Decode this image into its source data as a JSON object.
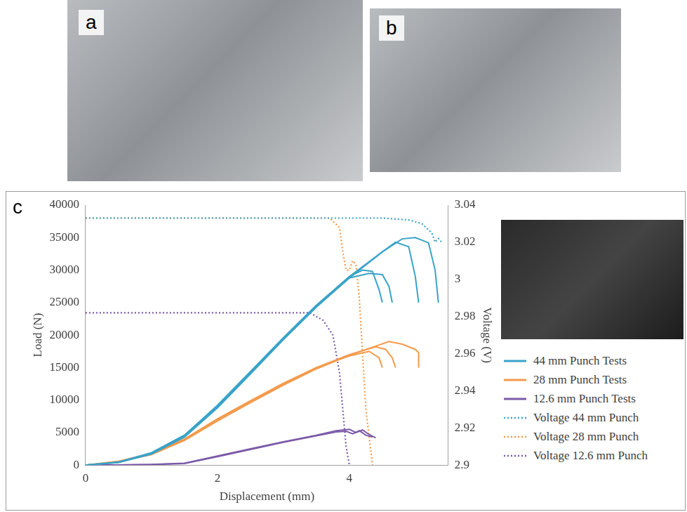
{
  "panel_labels": [
    "a",
    "b",
    "c"
  ],
  "chart_data": {
    "type": "line",
    "x_label": "Displacement (mm)",
    "y_label": "Load (N)",
    "y2_label": "Voltage (V)",
    "xlim": [
      0,
      5.5
    ],
    "xticks": [
      0,
      2,
      4
    ],
    "ylim": [
      0,
      40000
    ],
    "yticks": [
      0,
      5000,
      10000,
      15000,
      20000,
      25000,
      30000,
      35000,
      40000
    ],
    "y2lim": [
      2.9,
      3.04
    ],
    "y2ticks": [
      2.9,
      2.92,
      2.94,
      2.96,
      2.98,
      3,
      3.02,
      3.04
    ],
    "grid": false,
    "legend": "right",
    "series": [
      {
        "name": "44 mm Punch Tests",
        "color": "#3aa3c8",
        "line_style": "solid",
        "axis": "y",
        "tests": [
          {
            "x": [
              0,
              0.5,
              1,
              1.5,
              2,
              2.5,
              3,
              3.5,
              4,
              4.5,
              4.8,
              5.0,
              5.2,
              5.3,
              5.35
            ],
            "values": [
              0,
              400,
              1700,
              4300,
              8800,
              14000,
              19300,
              24300,
              28800,
              32800,
              34800,
              35000,
              34200,
              30000,
              25000
            ]
          },
          {
            "x": [
              0,
              0.5,
              1,
              1.5,
              2,
              2.5,
              3,
              3.5,
              4,
              4.5,
              4.7,
              4.9,
              5.0,
              5.05
            ],
            "values": [
              0,
              400,
              1800,
              4500,
              9000,
              14200,
              19500,
              24500,
              29000,
              32800,
              34300,
              33600,
              29000,
              25000
            ]
          },
          {
            "x": [
              0,
              0.5,
              1,
              1.5,
              2,
              2.5,
              3,
              3.5,
              4,
              4.2,
              4.35,
              4.45,
              4.5
            ],
            "values": [
              0,
              450,
              1900,
              4600,
              9200,
              14400,
              19600,
              24600,
              29000,
              30000,
              29800,
              27000,
              25000
            ]
          },
          {
            "x": [
              0,
              0.5,
              1,
              1.5,
              2,
              2.5,
              3,
              3.5,
              4,
              4.3,
              4.5,
              4.6,
              4.65
            ],
            "values": [
              0,
              450,
              1900,
              4600,
              9100,
              14300,
              19500,
              24500,
              28800,
              29500,
              29300,
              27500,
              25000
            ]
          }
        ]
      },
      {
        "name": "28 mm Punch Tests",
        "color": "#f39a4b",
        "line_style": "solid",
        "axis": "y",
        "tests": [
          {
            "x": [
              0,
              0.5,
              1,
              1.5,
              2,
              2.5,
              3,
              3.5,
              4,
              4.4,
              4.6,
              4.8,
              5.0,
              5.05,
              5.05
            ],
            "values": [
              0,
              500,
              1600,
              3800,
              6800,
              9600,
              12300,
              14800,
              16900,
              18300,
              19000,
              18600,
              17800,
              17300,
              15000
            ]
          },
          {
            "x": [
              0,
              0.5,
              1,
              1.5,
              2,
              2.5,
              3,
              3.5,
              4,
              4.4,
              4.55,
              4.65,
              4.7
            ],
            "values": [
              0,
              550,
              1700,
              3900,
              7000,
              9800,
              12500,
              15000,
              17000,
              18200,
              17800,
              16500,
              15000
            ]
          },
          {
            "x": [
              0,
              0.5,
              1,
              1.5,
              2,
              2.5,
              3,
              3.5,
              4,
              4.3,
              4.45,
              4.5
            ],
            "values": [
              0,
              600,
              1800,
              4000,
              7100,
              9900,
              12600,
              15000,
              16800,
              17500,
              16500,
              15000
            ]
          }
        ]
      },
      {
        "name": "12.6 mm Punch Tests",
        "color": "#7b5aa8",
        "line_style": "solid",
        "axis": "y",
        "tests": [
          {
            "x": [
              0,
              0.5,
              1,
              1.5,
              2,
              2.5,
              3,
              3.5,
              3.8,
              4.0,
              4.1,
              4.2,
              4.3,
              4.4
            ],
            "values": [
              0,
              30,
              100,
              300,
              1400,
              2500,
              3600,
              4600,
              5300,
              5500,
              5000,
              5400,
              4700,
              4200
            ]
          },
          {
            "x": [
              0,
              0.5,
              1,
              1.5,
              2,
              2.5,
              3,
              3.5,
              3.8,
              3.95,
              4.05,
              4.15,
              4.25,
              4.35
            ],
            "values": [
              0,
              20,
              80,
              250,
              1300,
              2400,
              3500,
              4500,
              5100,
              5200,
              4800,
              5300,
              4600,
              4300
            ]
          }
        ]
      },
      {
        "name": "Voltage 44 mm Punch",
        "color": "#3aa3c8",
        "line_style": "dotted",
        "axis": "y2",
        "x": [
          0,
          4.5,
          4.9,
          5.1,
          5.25,
          5.3,
          5.35,
          5.4
        ],
        "values": [
          3.033,
          3.033,
          3.032,
          3.03,
          3.025,
          3.02,
          3.022,
          3.02
        ]
      },
      {
        "name": "Voltage 28 mm Punch",
        "color": "#f39a4b",
        "line_style": "dotted",
        "axis": "y2",
        "x": [
          0,
          3.7,
          3.85,
          3.9,
          3.95,
          4.0,
          4.05,
          4.1,
          4.15,
          4.25,
          4.35
        ],
        "values": [
          3.033,
          3.033,
          3.028,
          3.015,
          3.005,
          3.005,
          3.01,
          3.008,
          2.99,
          2.93,
          2.9
        ]
      },
      {
        "name": "Voltage 12.6 mm Punch",
        "color": "#7b5aa8",
        "line_style": "dotted",
        "axis": "y2",
        "x": [
          0,
          3.4,
          3.6,
          3.75,
          3.85,
          3.9,
          3.95,
          4.0
        ],
        "values": [
          2.982,
          2.982,
          2.978,
          2.97,
          2.95,
          2.93,
          2.91,
          2.9
        ]
      }
    ]
  }
}
